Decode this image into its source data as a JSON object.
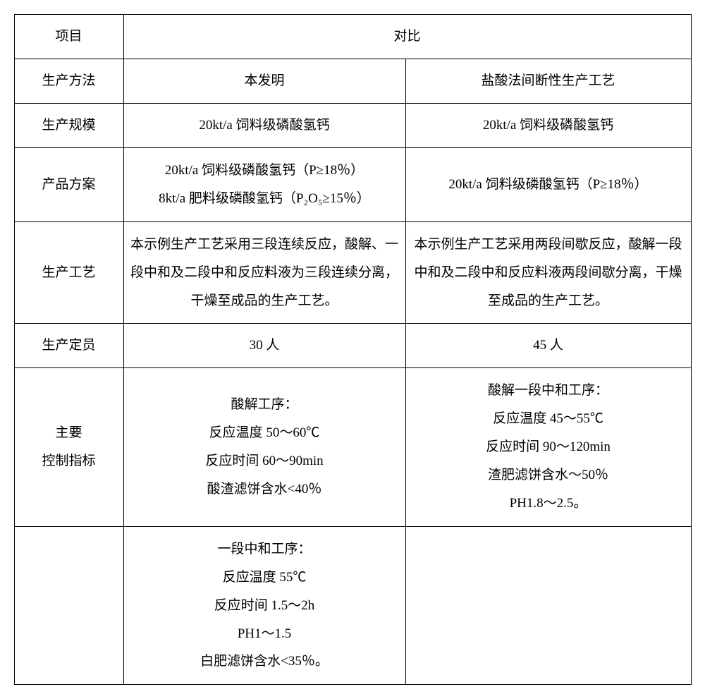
{
  "table": {
    "header": {
      "project": "项目",
      "comparison": "对比"
    },
    "rows": {
      "method": {
        "label": "生产方法",
        "left": "本发明",
        "right": "盐酸法间断性生产工艺"
      },
      "scale": {
        "label": "生产规模",
        "left": "20kt/a 饲料级磷酸氢钙",
        "right": "20kt/a 饲料级磷酸氢钙"
      },
      "product_plan": {
        "label": "产品方案",
        "left_line1": "20kt/a 饲料级磷酸氢钙（P≥18％）",
        "left_line2": "8kt/a 肥料级磷酸氢钙（P₂O₅≥15％）",
        "right": "20kt/a 饲料级磷酸氢钙（P≥18％）"
      },
      "process": {
        "label": "生产工艺",
        "left": "本示例生产工艺采用三段连续反应，酸解、一段中和及二段中和反应料液为三段连续分离，干燥至成品的生产工艺。",
        "right": "本示例生产工艺采用两段间歇反应，酸解一段中和及二段中和反应料液两段间歇分离，干燥至成品的生产工艺。"
      },
      "staff": {
        "label": "生产定员",
        "left": "30 人",
        "right": "45 人"
      },
      "control": {
        "label_line1": "主要",
        "label_line2": "控制指标",
        "left_line1": "酸解工序：",
        "left_line2": "反应温度 50～60℃",
        "left_line3": "反应时间 60～90min",
        "left_line4": "酸渣滤饼含水<40％",
        "right_line1": "酸解一段中和工序：",
        "right_line2": "反应温度 45～55℃",
        "right_line3": "反应时间 90～120min",
        "right_line4": "渣肥滤饼含水～50％",
        "right_line5": "PH1.8～2.5。"
      },
      "control2": {
        "label": "",
        "left_line1": "一段中和工序：",
        "left_line2": "反应温度 55℃",
        "left_line3": "反应时间 1.5～2h",
        "left_line4": "PH1～1.5",
        "left_line5": "白肥滤饼含水<35％。",
        "right": ""
      }
    }
  }
}
